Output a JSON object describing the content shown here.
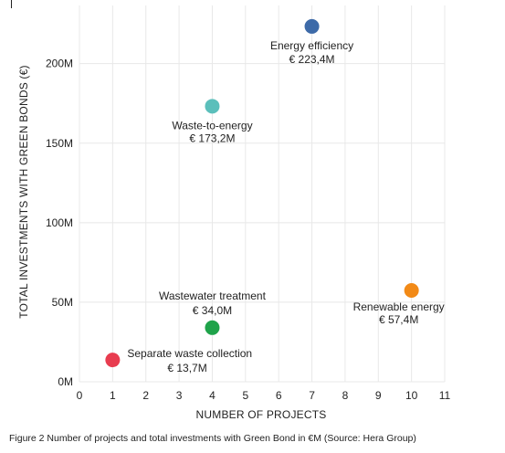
{
  "chart_data": {
    "type": "scatter",
    "xlabel": "NUMBER OF PROJECTS",
    "ylabel": "TOTAL INVESTMENTS WITH GREEN BONDS (€)",
    "xlim": [
      0,
      11
    ],
    "ylim": [
      0,
      240
    ],
    "x_ticks": [
      0,
      1,
      2,
      3,
      4,
      5,
      6,
      7,
      8,
      9,
      10,
      11
    ],
    "y_ticks": [
      {
        "value": 0,
        "label": "0M"
      },
      {
        "value": 50,
        "label": "50M"
      },
      {
        "value": 100,
        "label": "100M"
      },
      {
        "value": 150,
        "label": "150M"
      },
      {
        "value": 200,
        "label": "200M"
      }
    ],
    "grid": true,
    "points": [
      {
        "name": "Energy efficiency",
        "value_label": "€ 223,4M",
        "x": 7,
        "y": 223.4,
        "color": "#3d6aa8"
      },
      {
        "name": "Waste-to-energy",
        "value_label": "€ 173,2M",
        "x": 4,
        "y": 173.2,
        "color": "#5bbfbb"
      },
      {
        "name": "Wastewater treatment",
        "value_label": "€ 34,0M",
        "x": 4,
        "y": 34.0,
        "color": "#1fa34a"
      },
      {
        "name": "Renewable energy",
        "value_label": "€ 57,4M",
        "x": 10,
        "y": 57.4,
        "color": "#f28a17"
      },
      {
        "name": "Separate waste collection",
        "value_label": "€ 13,7M",
        "x": 1,
        "y": 13.7,
        "color": "#e83c4f"
      }
    ]
  },
  "caption": "Figure 2 Number of projects and total investments with Green Bond in €M (Source: Hera Group)"
}
